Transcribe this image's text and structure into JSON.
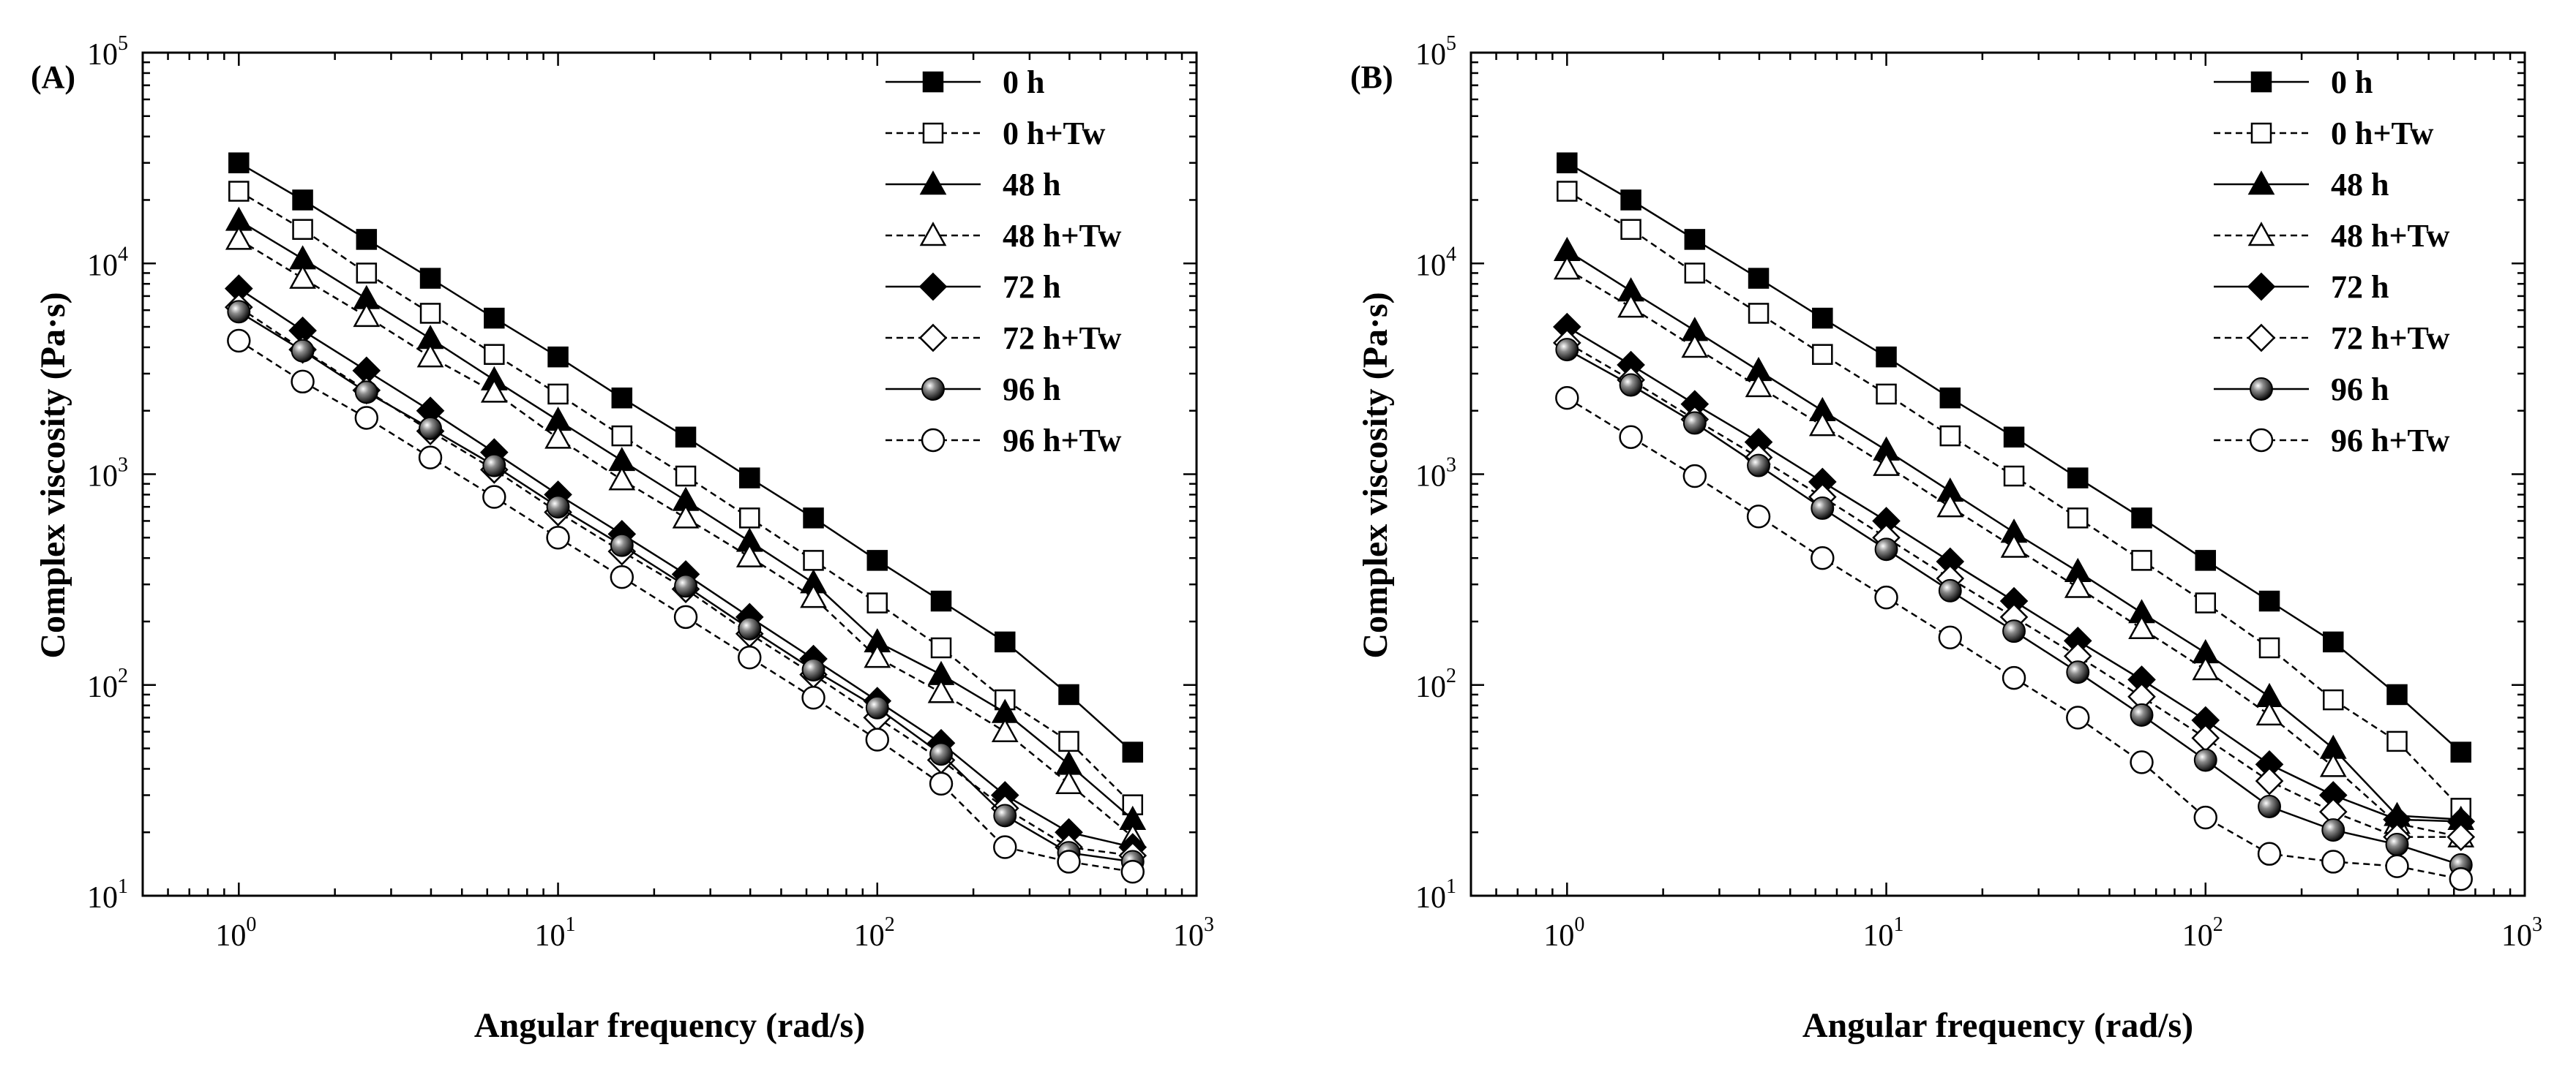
{
  "figure": {
    "panels": [
      {
        "panel_label": "(A)",
        "chart_data": {
          "type": "line",
          "title": "",
          "xlabel": "Angular frequency (rad/s)",
          "ylabel": "Complex viscosity (Pa·s)",
          "xscale": "log",
          "yscale": "log",
          "xlim": [
            0.5,
            1000
          ],
          "ylim": [
            10,
            100000
          ],
          "x_ticks": [
            1,
            10,
            100,
            1000
          ],
          "x_tick_labels": [
            {
              "base": "10",
              "exp": "0"
            },
            {
              "base": "10",
              "exp": "1"
            },
            {
              "base": "10",
              "exp": "2"
            },
            {
              "base": "10",
              "exp": "3"
            }
          ],
          "y_ticks": [
            10,
            100,
            1000,
            10000,
            100000
          ],
          "y_tick_labels": [
            {
              "base": "10",
              "exp": "1"
            },
            {
              "base": "10",
              "exp": "2"
            },
            {
              "base": "10",
              "exp": "3"
            },
            {
              "base": "10",
              "exp": "4"
            },
            {
              "base": "10",
              "exp": "5"
            }
          ],
          "legend_position": "top-right",
          "x": [
            1,
            1.585,
            2.512,
            3.981,
            6.31,
            10,
            15.85,
            25.12,
            39.81,
            63.1,
            100,
            158.5,
            251.2,
            398.1,
            631
          ],
          "series": [
            {
              "name": "0 h",
              "marker": "square",
              "filled": true,
              "dashed": false,
              "values": [
                30000,
                20000,
                13000,
                8500,
                5500,
                3600,
                2300,
                1500,
                960,
                620,
                390,
                250,
                160,
                90,
                48
              ]
            },
            {
              "name": "0 h+Tw",
              "marker": "square",
              "filled": false,
              "dashed": true,
              "values": [
                22000,
                14500,
                9000,
                5800,
                3700,
                2400,
                1520,
                980,
                620,
                390,
                245,
                150,
                85,
                54,
                27
              ]
            },
            {
              "name": "48 h",
              "marker": "triangle",
              "filled": true,
              "dashed": false,
              "values": [
                16000,
                10500,
                6800,
                4400,
                2800,
                1800,
                1160,
                750,
                480,
                305,
                160,
                112,
                74,
                42,
                23
              ]
            },
            {
              "name": "48 h+Tw",
              "marker": "triangle",
              "filled": false,
              "dashed": true,
              "values": [
                13000,
                8500,
                5600,
                3600,
                2450,
                1480,
                940,
                620,
                405,
                260,
                135,
                92,
                60,
                34,
                19
              ]
            },
            {
              "name": "72 h",
              "marker": "diamond",
              "filled": true,
              "dashed": false,
              "values": [
                7600,
                4800,
                3100,
                2000,
                1270,
                800,
                520,
                335,
                210,
                133,
                84,
                53,
                30,
                20,
                17
              ]
            },
            {
              "name": "72 h+Tw",
              "marker": "diamond",
              "filled": false,
              "dashed": true,
              "values": [
                6200,
                3900,
                2500,
                1600,
                1050,
                660,
                430,
                285,
                175,
                112,
                70,
                44,
                26,
                17,
                15.5
              ]
            },
            {
              "name": "96 h",
              "marker": "sphere",
              "filled": true,
              "dashed": false,
              "values": [
                5900,
                3850,
                2450,
                1650,
                1100,
                700,
                460,
                295,
                185,
                118,
                78,
                47,
                24,
                16,
                14.5
              ]
            },
            {
              "name": "96 h+Tw",
              "marker": "circle",
              "filled": false,
              "dashed": true,
              "values": [
                4300,
                2750,
                1850,
                1200,
                780,
                500,
                325,
                210,
                135,
                87,
                55,
                34,
                17,
                14.5,
                13
              ]
            }
          ]
        }
      },
      {
        "panel_label": "(B)",
        "chart_data": {
          "type": "line",
          "title": "",
          "xlabel": "Angular frequency (rad/s)",
          "ylabel": "Complex viscosity (Pa·s)",
          "xscale": "log",
          "yscale": "log",
          "xlim": [
            0.5,
            1000
          ],
          "ylim": [
            10,
            100000
          ],
          "x_ticks": [
            1,
            10,
            100,
            1000
          ],
          "x_tick_labels": [
            {
              "base": "10",
              "exp": "0"
            },
            {
              "base": "10",
              "exp": "1"
            },
            {
              "base": "10",
              "exp": "2"
            },
            {
              "base": "10",
              "exp": "3"
            }
          ],
          "y_ticks": [
            10,
            100,
            1000,
            10000,
            100000
          ],
          "y_tick_labels": [
            {
              "base": "10",
              "exp": "1"
            },
            {
              "base": "10",
              "exp": "2"
            },
            {
              "base": "10",
              "exp": "3"
            },
            {
              "base": "10",
              "exp": "4"
            },
            {
              "base": "10",
              "exp": "5"
            }
          ],
          "legend_position": "top-right",
          "x": [
            1,
            1.585,
            2.512,
            3.981,
            6.31,
            10,
            15.85,
            25.12,
            39.81,
            63.1,
            100,
            158.5,
            251.2,
            398.1,
            631
          ],
          "series": [
            {
              "name": "0 h",
              "marker": "square",
              "filled": true,
              "dashed": false,
              "values": [
                30000,
                20000,
                13000,
                8500,
                5500,
                3600,
                2300,
                1500,
                960,
                620,
                390,
                250,
                160,
                90,
                48
              ]
            },
            {
              "name": "0 h+Tw",
              "marker": "square",
              "filled": false,
              "dashed": true,
              "values": [
                22000,
                14500,
                9000,
                5800,
                3700,
                2400,
                1520,
                980,
                620,
                390,
                245,
                150,
                85,
                54,
                26
              ]
            },
            {
              "name": "48 h",
              "marker": "triangle",
              "filled": true,
              "dashed": false,
              "values": [
                11500,
                7400,
                4800,
                3100,
                2000,
                1300,
                830,
                530,
                345,
                220,
                142,
                88,
                50,
                24,
                23
              ]
            },
            {
              "name": "48 h+Tw",
              "marker": "triangle",
              "filled": false,
              "dashed": true,
              "values": [
                9400,
                6200,
                4000,
                2600,
                1700,
                1100,
                700,
                450,
                290,
                185,
                118,
                72,
                41,
                22,
                19
              ]
            },
            {
              "name": "72 h",
              "marker": "diamond",
              "filled": true,
              "dashed": false,
              "values": [
                5000,
                3300,
                2150,
                1420,
                920,
                600,
                385,
                250,
                162,
                106,
                68,
                42,
                30,
                23,
                22.5
              ]
            },
            {
              "name": "72 h+Tw",
              "marker": "diamond",
              "filled": false,
              "dashed": true,
              "values": [
                4200,
                2800,
                1820,
                1200,
                780,
                500,
                320,
                210,
                137,
                88,
                56,
                35,
                25,
                19,
                19
              ]
            },
            {
              "name": "96 h",
              "marker": "sphere",
              "filled": true,
              "dashed": false,
              "values": [
                3900,
                2650,
                1750,
                1100,
                690,
                440,
                280,
                180,
                115,
                72,
                44,
                26.5,
                20.5,
                17.5,
                14
              ]
            },
            {
              "name": "96 h+Tw",
              "marker": "circle",
              "filled": false,
              "dashed": true,
              "values": [
                2300,
                1500,
                980,
                630,
                400,
                260,
                168,
                108,
                70,
                43,
                23.5,
                15.8,
                14.5,
                13.8,
                12
              ]
            }
          ]
        }
      }
    ]
  }
}
